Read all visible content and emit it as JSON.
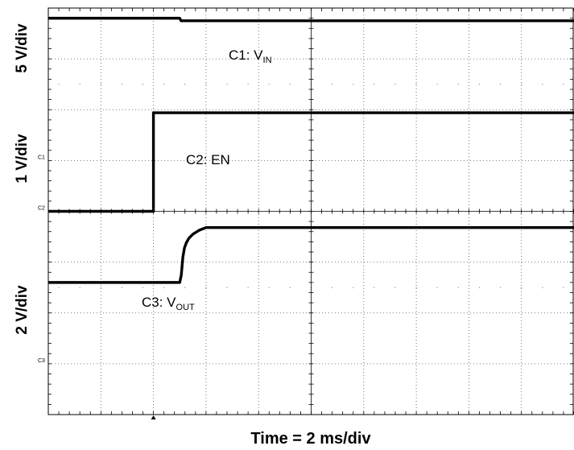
{
  "chart_data": {
    "type": "line",
    "title": "",
    "xlabel": "Time = 2 ms/div",
    "x_unit": "ms",
    "x_scale_per_div": 2,
    "x_divisions": 10,
    "y_divisions": 8,
    "grid": true,
    "channels": [
      {
        "id": "C1",
        "label_prefix": "C1: V",
        "label_sub": "IN",
        "scale_label": "5 V/div",
        "marker": "C1",
        "marker_level_div": 3.0
      },
      {
        "id": "C2",
        "label": "C2: EN",
        "scale_label": "1 V/div",
        "marker": "C2",
        "marker_level_div": 4.0
      },
      {
        "id": "C3",
        "label_prefix": "C3: V",
        "label_sub": "OUT",
        "scale_label": "2 V/div",
        "marker": "C3",
        "marker_level_div": 7.0
      }
    ],
    "series": [
      {
        "name": "C1",
        "x": [
          0,
          5.0,
          5.05,
          20.0
        ],
        "y_div": [
          0.2,
          0.2,
          0.25,
          0.25
        ]
      },
      {
        "name": "C2",
        "x": [
          0,
          4.0,
          4.0,
          20.0
        ],
        "y_div": [
          4.0,
          4.0,
          2.06,
          2.06
        ]
      },
      {
        "name": "C3",
        "x": [
          0,
          4.8,
          5.0,
          5.06,
          5.12,
          5.18,
          5.25,
          5.35,
          5.5,
          5.75,
          6.0,
          20.0
        ],
        "y_div": [
          5.4,
          5.4,
          5.4,
          5.25,
          4.9,
          4.72,
          4.62,
          4.53,
          4.45,
          4.37,
          4.32,
          4.32
        ]
      }
    ]
  }
}
